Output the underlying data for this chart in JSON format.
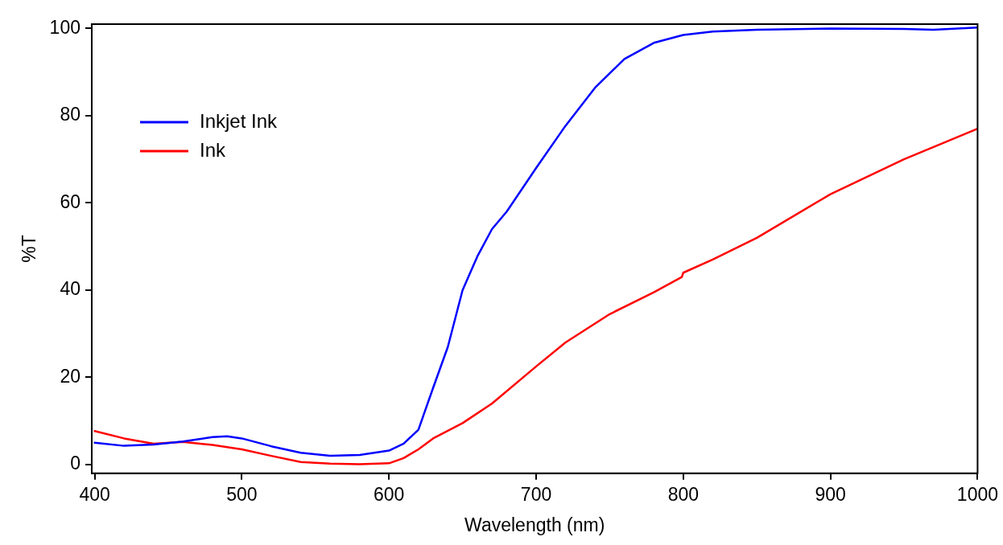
{
  "chart_data": {
    "type": "line",
    "xlabel": "Wavelength (nm)",
    "ylabel": "%T",
    "xlim": [
      398,
      1000
    ],
    "ylim": [
      -2,
      101
    ],
    "xticks": [
      400,
      500,
      600,
      700,
      800,
      900,
      1000
    ],
    "yticks": [
      0,
      20,
      40,
      60,
      80,
      100
    ],
    "grid": false,
    "legend": "top left",
    "marker": "none",
    "line_style": "solid",
    "series": [
      {
        "name": "Inkjet Ink",
        "color": "#0000ff",
        "x": [
          400,
          420,
          440,
          460,
          480,
          490,
          500,
          520,
          540,
          560,
          580,
          600,
          610,
          620,
          630,
          640,
          650,
          660,
          670,
          680,
          700,
          720,
          740,
          760,
          780,
          800,
          820,
          850,
          900,
          950,
          970,
          1000
        ],
        "values": [
          5.0,
          4.3,
          4.6,
          5.3,
          6.3,
          6.5,
          6.0,
          4.2,
          2.7,
          2.0,
          2.2,
          3.2,
          4.8,
          8,
          17.6,
          27,
          40,
          47.7,
          54,
          58,
          68,
          77.7,
          86.4,
          93,
          96.7,
          98.5,
          99.3,
          99.7,
          100,
          99.9,
          99.7,
          100.2
        ]
      },
      {
        "name": "Ink",
        "color": "#ff0000",
        "x": [
          400,
          420,
          440,
          460,
          480,
          500,
          520,
          540,
          560,
          580,
          600,
          610,
          620,
          630,
          650,
          670,
          700,
          720,
          750,
          780,
          799,
          800,
          820,
          850,
          900,
          950,
          1000
        ],
        "values": [
          7.7,
          6,
          4.8,
          5.2,
          4.5,
          3.5,
          2,
          0.6,
          0.2,
          0.1,
          0.3,
          1.5,
          3.5,
          6,
          9.5,
          14,
          22.5,
          28,
          34.5,
          39.5,
          43,
          44,
          47,
          52,
          62,
          70,
          77
        ]
      }
    ]
  }
}
